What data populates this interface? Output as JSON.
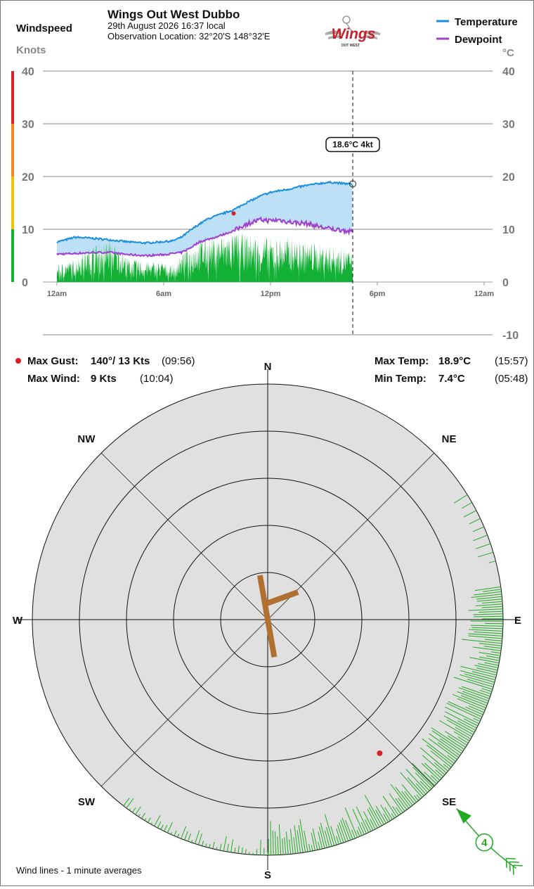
{
  "header": {
    "windspeed_label": "Windspeed",
    "knots_label": "Knots",
    "station_name": "Wings Out West Dubbo",
    "datetime": "29th August 2026  16:37 local",
    "location": "Observation Location: 32°20'S 148°32'E",
    "logo_text": "Wings",
    "logo_subtext": "OUT WEST",
    "celsius_label": "°C",
    "legend": [
      {
        "name": "Temperature",
        "color": "#1a8fe0"
      },
      {
        "name": "Dewpoint",
        "color": "#a040d0"
      }
    ]
  },
  "chart_data": {
    "type": "line",
    "x_tick_labels": [
      "12am",
      "6am",
      "12pm",
      "6pm",
      "12am"
    ],
    "x_range_hours": [
      0,
      24
    ],
    "left_axis": {
      "label": "Knots",
      "ticks": [
        0,
        10,
        20,
        30,
        40
      ],
      "range": [
        0,
        40
      ]
    },
    "right_axis": {
      "label": "°C",
      "ticks": [
        -10,
        0,
        10,
        20,
        30,
        40
      ],
      "range": [
        -10,
        40
      ]
    },
    "wind_speed_scale_colors": [
      {
        "from": 0,
        "to": 10,
        "color": "#18b033"
      },
      {
        "from": 10,
        "to": 20,
        "color": "#e8c310"
      },
      {
        "from": 20,
        "to": 30,
        "color": "#f08828"
      },
      {
        "from": 30,
        "to": 40,
        "color": "#d8242c"
      }
    ],
    "series": [
      {
        "name": "Temperature",
        "color": "#1a8fe0",
        "hours": [
          0,
          0.5,
          1,
          2,
          3,
          4,
          5,
          5.8,
          6.5,
          7,
          7.5,
          8,
          8.5,
          9,
          9.5,
          10,
          10.5,
          11,
          11.5,
          12,
          12.5,
          13,
          14,
          15,
          15.5,
          16,
          16.5,
          16.62
        ],
        "values": [
          7.6,
          8,
          8.5,
          8.3,
          8.0,
          7.6,
          7.4,
          7.6,
          7.8,
          8.5,
          9.8,
          11,
          12,
          12.6,
          13.2,
          13.8,
          14.8,
          15.6,
          16.4,
          17.0,
          17.3,
          17.6,
          18.3,
          18.8,
          18.9,
          18.7,
          18.6,
          18.6
        ]
      },
      {
        "name": "Dewpoint",
        "color": "#a040d0",
        "hours": [
          0,
          1,
          2,
          3,
          4,
          5,
          6,
          7,
          7.5,
          8,
          8.5,
          9,
          9.5,
          10,
          10.5,
          11,
          11.5,
          12,
          12.5,
          13,
          14,
          15,
          15.5,
          16,
          16.5,
          16.62
        ],
        "values": [
          5.3,
          5.4,
          5.6,
          5.6,
          5.2,
          5.0,
          5.2,
          5.6,
          6.5,
          7.6,
          8.1,
          8.6,
          9.2,
          9.8,
          10.8,
          11.4,
          11.8,
          11.6,
          11.8,
          11.4,
          11.1,
          10.3,
          10.0,
          9.9,
          9.5,
          9.6
        ]
      }
    ],
    "wind_speed_avg_envelope": {
      "hours": [
        0,
        1,
        2,
        3,
        4,
        5,
        6,
        6.5,
        7,
        7.5,
        8,
        9,
        10,
        11,
        12,
        13,
        14,
        15,
        16,
        16.62
      ],
      "values": [
        2.5,
        3.5,
        5.5,
        6.5,
        3.5,
        3,
        3,
        2.5,
        4,
        5.5,
        6.5,
        7,
        7.5,
        7,
        6.5,
        6.5,
        6,
        5.5,
        5,
        4.5
      ]
    },
    "current": {
      "hour": 16.62,
      "temperature": 18.6,
      "wind_kt": 4,
      "label": "18.6°C  4kt"
    },
    "max_gust_marker": {
      "hour": 9.93,
      "kt": 13
    }
  },
  "stats": {
    "max_gust": {
      "label": "Max Gust:",
      "value": "140°/ 13 Kts",
      "time": "(09:56)"
    },
    "max_wind": {
      "label": "Max Wind:",
      "value": "9 Kts",
      "time": "(10:04)"
    },
    "max_temp": {
      "label": "Max Temp:",
      "value": "18.9°C",
      "time": "(15:57)"
    },
    "min_temp": {
      "label": "Min Temp:",
      "value": "7.4°C",
      "time": "(05:48)"
    }
  },
  "rose": {
    "directions": [
      {
        "label": "N",
        "bearing": 0
      },
      {
        "label": "NE",
        "bearing": 45
      },
      {
        "label": "E",
        "bearing": 90
      },
      {
        "label": "SE",
        "bearing": 135
      },
      {
        "label": "S",
        "bearing": 180
      },
      {
        "label": "SW",
        "bearing": 225
      },
      {
        "label": "W",
        "bearing": 270
      },
      {
        "label": "NW",
        "bearing": 315
      }
    ],
    "wind_lines_note": "Wind lines - 1 minute averages",
    "current_wind_kt": "4",
    "current_wind_from_deg": 135,
    "max_gust_direction_deg": 140,
    "runways": [
      {
        "bearing": 350
      },
      {
        "bearing": 70
      }
    ],
    "wind_line_bands": [
      {
        "from_deg": 58,
        "to_deg": 77,
        "step": 2.2,
        "min_len": 4,
        "max_len": 24
      },
      {
        "from_deg": 82,
        "to_deg": 94,
        "step": 0.6,
        "min_len": 25,
        "max_len": 50
      },
      {
        "from_deg": 94,
        "to_deg": 130,
        "step": 0.6,
        "min_len": 10,
        "max_len": 58
      },
      {
        "from_deg": 130,
        "to_deg": 180,
        "step": 0.6,
        "min_len": 8,
        "max_len": 50
      },
      {
        "from_deg": 180,
        "to_deg": 218,
        "step": 0.9,
        "min_len": 2,
        "max_len": 22
      }
    ],
    "wind_line_color": "#22aa22"
  }
}
